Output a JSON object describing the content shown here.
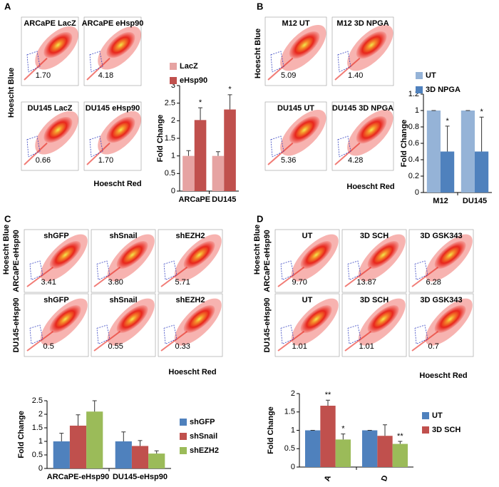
{
  "panels": [
    {
      "label": "A",
      "y_label": "Hoescht Blue",
      "x_label": "Hoescht Red",
      "plots": [
        {
          "title": "ARCaPE LacZ",
          "value": "1.70"
        },
        {
          "title": "ARCaPE eHsp90",
          "value": "4.18"
        },
        {
          "title": "DU145 LacZ",
          "value": "0.66"
        },
        {
          "title": "DU145 eHsp90",
          "value": "1.70"
        }
      ]
    },
    {
      "label": "B",
      "y_label": "Hoescht Blue",
      "x_label": "Hoescht Red",
      "plots": [
        {
          "title": "M12 UT",
          "value": "5.09"
        },
        {
          "title": "M12 3D NPGA",
          "value": "1.40"
        },
        {
          "title": "DU145 UT",
          "value": "5.36"
        },
        {
          "title": "DU145 3D NPGA",
          "value": "4.28"
        }
      ]
    },
    {
      "label": "C",
      "y_label": "Hoescht Blue",
      "x_label": "Hoescht Red",
      "row_labels": [
        "ARCaPE-eHsp90",
        "DU145-eHsp90"
      ],
      "plots": [
        {
          "title": "shGFP",
          "value": "3.41"
        },
        {
          "title": "shSnail",
          "value": "3.80"
        },
        {
          "title": "shEZH2",
          "value": "5.71"
        },
        {
          "title": "shGFP",
          "value": "0.5"
        },
        {
          "title": "shSnail",
          "value": "0.55"
        },
        {
          "title": "shEZH2",
          "value": "0.33"
        }
      ]
    },
    {
      "label": "D",
      "y_label": "Hoescht Blue",
      "x_label": "Hoescht Red",
      "row_labels": [
        "ARCaPE-eHsp90",
        "DU145-eHsp90"
      ],
      "plots": [
        {
          "title": "UT",
          "value": "9.70"
        },
        {
          "title": "3D SCH",
          "value": "13.87"
        },
        {
          "title": "3D GSK343",
          "value": "6.28"
        },
        {
          "title": "UT",
          "value": "1.01"
        },
        {
          "title": "3D SCH",
          "value": "1.01"
        },
        {
          "title": "3D GSK343",
          "value": "0.7"
        }
      ]
    }
  ],
  "chart_data": [
    {
      "type": "bar",
      "y_label": "Fold Change",
      "categories": [
        "ARCaPE",
        "DU145"
      ],
      "ylim": [
        0,
        3
      ],
      "yticks": [
        0,
        0.5,
        1,
        1.5,
        2,
        2.5,
        3
      ],
      "series": [
        {
          "name": "LacZ",
          "color": "#e6a3a2",
          "values": [
            1,
            1
          ],
          "errors": [
            0.15,
            0.12
          ]
        },
        {
          "name": "eHsp90",
          "color": "#c0504d",
          "values": [
            2.02,
            2.32
          ],
          "errors": [
            0.35,
            0.42
          ],
          "annotations": [
            "*",
            "*"
          ]
        }
      ]
    },
    {
      "type": "bar",
      "y_label": "Fold Change",
      "categories": [
        "M12",
        "DU145"
      ],
      "ylim": [
        0,
        1.2
      ],
      "yticks": [
        0,
        0.2,
        0.4,
        0.6,
        0.8,
        1,
        1.2
      ],
      "series": [
        {
          "name": "UT",
          "color": "#95b3d7",
          "values": [
            1,
            1
          ],
          "errors": [
            0,
            0
          ]
        },
        {
          "name": "3D NPGA",
          "color": "#4f81bd",
          "values": [
            0.5,
            0.5
          ],
          "errors": [
            0.31,
            0.42
          ],
          "annotations": [
            "*",
            "*"
          ]
        }
      ]
    },
    {
      "type": "bar",
      "y_label": "Fold Change",
      "categories": [
        "ARCaPE-eHsp90",
        "DU145-eHsp90"
      ],
      "ylim": [
        0,
        2.5
      ],
      "yticks": [
        0,
        0.5,
        1,
        1.5,
        2,
        2.5
      ],
      "series": [
        {
          "name": "shGFP",
          "color": "#4f81bd",
          "values": [
            1,
            1
          ],
          "errors": [
            0.3,
            0.35
          ]
        },
        {
          "name": "shSnail",
          "color": "#c0504d",
          "values": [
            1.58,
            0.83
          ],
          "errors": [
            0.4,
            0.2
          ]
        },
        {
          "name": "shEZH2",
          "color": "#9bbb59",
          "values": [
            2.1,
            0.55
          ],
          "errors": [
            0.4,
            0.1
          ]
        }
      ]
    },
    {
      "type": "bar",
      "y_label": "Fold Change",
      "categories": [
        "A",
        "D"
      ],
      "ylim": [
        0,
        2
      ],
      "yticks": [
        0,
        0.5,
        1,
        1.5,
        2
      ],
      "series": [
        {
          "name": "UT",
          "color": "#4f81bd",
          "values": [
            1,
            1
          ],
          "errors": [
            0,
            0
          ]
        },
        {
          "name": "3D SCH",
          "color": "#c0504d",
          "values": [
            1.67,
            0.85
          ],
          "errors": [
            0.15,
            0.3
          ],
          "annotations": [
            "**",
            null
          ]
        },
        {
          "color": "#9bbb59",
          "values": [
            0.75,
            0.63
          ],
          "errors": [
            0.15,
            0.07
          ],
          "annotations": [
            "*",
            "**"
          ]
        }
      ]
    }
  ]
}
